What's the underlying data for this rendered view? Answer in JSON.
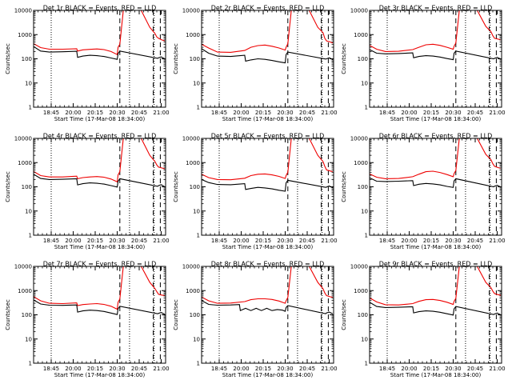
{
  "colors": {
    "events": "#000000",
    "lld": "#ee0000",
    "background": "#ffffff",
    "axis": "#000000"
  },
  "shared": {
    "xlabel": "Start Time (17-Mar-08 18:34:00)",
    "ylabel": "Counts/sec",
    "x_tick_labels": [
      "18:45",
      "20:00",
      "20:15",
      "20:30",
      "20:45",
      "21:00"
    ],
    "y_tick_labels": [
      "1",
      "10",
      "100",
      "1000",
      "10000"
    ]
  },
  "chart_data": [
    {
      "type": "line",
      "title": "Det 1r BLACK = Events, RED = LLD",
      "x_unit": "minutes",
      "xlim": [
        0,
        150
      ],
      "ylim": [
        1,
        10000
      ],
      "y_scale": "log",
      "dotted_lines": [
        20,
        109,
        137
      ],
      "dashed_lines": [
        98,
        136,
        144
      ],
      "series": [
        {
          "x": [
            0,
            8,
            18,
            33,
            49,
            50,
            56,
            64,
            72,
            80,
            88,
            95,
            96,
            98,
            102,
            103,
            107,
            108,
            122,
            132,
            138,
            140,
            142,
            146,
            149
          ],
          "y": [
            420,
            290,
            250,
            250,
            260,
            210,
            235,
            245,
            255,
            240,
            200,
            150,
            300,
            400,
            10500,
            10500,
            12500,
            10500,
            10500,
            2000,
            1100,
            800,
            700,
            600,
            550
          ]
        },
        {
          "x": [
            0,
            8,
            18,
            33,
            49,
            50,
            56,
            64,
            72,
            80,
            88,
            95,
            96,
            98,
            141,
            142,
            145,
            149
          ],
          "y": [
            320,
            210,
            190,
            195,
            205,
            115,
            130,
            140,
            135,
            125,
            108,
            95,
            165,
            210,
            105,
            110,
            120,
            100
          ]
        }
      ]
    },
    {
      "type": "line",
      "title": "Det 2r BLACK = Events, RED = LLD",
      "x_unit": "minutes",
      "xlim": [
        0,
        150
      ],
      "ylim": [
        1,
        10000
      ],
      "y_scale": "log",
      "dotted_lines": [
        20,
        109,
        137
      ],
      "dashed_lines": [
        98,
        136,
        144
      ],
      "series": [
        {
          "x": [
            0,
            8,
            18,
            33,
            49,
            56,
            64,
            72,
            80,
            88,
            95,
            96,
            98,
            102,
            103,
            107,
            108,
            122,
            132,
            138,
            140,
            142,
            146,
            149
          ],
          "y": [
            400,
            280,
            190,
            185,
            220,
            300,
            350,
            370,
            330,
            280,
            230,
            300,
            420,
            10500,
            10500,
            12500,
            10500,
            10500,
            2000,
            1200,
            700,
            550,
            500,
            450
          ]
        },
        {
          "x": [
            0,
            8,
            18,
            33,
            49,
            50,
            56,
            64,
            72,
            80,
            88,
            95,
            96,
            98,
            141,
            142,
            145,
            149
          ],
          "y": [
            260,
            170,
            130,
            125,
            140,
            80,
            90,
            100,
            95,
            85,
            75,
            68,
            150,
            190,
            98,
            100,
            110,
            95
          ]
        }
      ]
    },
    {
      "type": "line",
      "title": "Det 3r BLACK = Events, RED = LLD",
      "x_unit": "minutes",
      "xlim": [
        0,
        150
      ],
      "ylim": [
        1,
        10000
      ],
      "y_scale": "log",
      "dotted_lines": [
        20,
        109,
        137
      ],
      "dashed_lines": [
        98,
        136,
        144
      ],
      "series": [
        {
          "x": [
            0,
            8,
            18,
            33,
            49,
            56,
            64,
            72,
            80,
            88,
            95,
            96,
            98,
            102,
            103,
            107,
            108,
            122,
            132,
            138,
            140,
            142,
            146,
            149
          ],
          "y": [
            360,
            250,
            200,
            205,
            240,
            300,
            380,
            400,
            360,
            300,
            250,
            330,
            450,
            10500,
            10500,
            12500,
            10500,
            10500,
            2200,
            1300,
            900,
            700,
            650,
            600
          ]
        },
        {
          "x": [
            0,
            8,
            18,
            33,
            49,
            50,
            56,
            64,
            72,
            80,
            88,
            95,
            96,
            98,
            141,
            142,
            145,
            149
          ],
          "y": [
            240,
            170,
            160,
            165,
            175,
            110,
            125,
            135,
            130,
            118,
            102,
            92,
            170,
            210,
            100,
            105,
            115,
            98
          ]
        }
      ]
    },
    {
      "type": "line",
      "title": "Det 4r BLACK = Events, RED = LLD",
      "x_unit": "minutes",
      "xlim": [
        0,
        150
      ],
      "ylim": [
        1,
        10000
      ],
      "y_scale": "log",
      "dotted_lines": [
        20,
        109,
        137
      ],
      "dashed_lines": [
        98,
        136,
        144
      ],
      "series": [
        {
          "x": [
            0,
            8,
            18,
            33,
            49,
            50,
            56,
            64,
            72,
            80,
            88,
            95,
            96,
            98,
            102,
            103,
            107,
            108,
            122,
            132,
            138,
            140,
            142,
            146,
            149
          ],
          "y": [
            430,
            290,
            255,
            255,
            275,
            215,
            240,
            255,
            265,
            250,
            210,
            160,
            310,
            420,
            10500,
            10500,
            12500,
            10500,
            10500,
            2000,
            1100,
            800,
            650,
            600,
            550
          ]
        },
        {
          "x": [
            0,
            8,
            18,
            33,
            49,
            50,
            56,
            64,
            72,
            80,
            88,
            95,
            96,
            98,
            141,
            142,
            145,
            149
          ],
          "y": [
            330,
            220,
            200,
            205,
            215,
            120,
            135,
            145,
            140,
            130,
            112,
            98,
            170,
            215,
            105,
            112,
            122,
            100
          ]
        }
      ]
    },
    {
      "type": "line",
      "title": "Det 5r BLACK = Events, RED = LLD",
      "x_unit": "minutes",
      "xlim": [
        0,
        150
      ],
      "ylim": [
        1,
        10000
      ],
      "y_scale": "log",
      "dotted_lines": [
        20,
        109,
        137
      ],
      "dashed_lines": [
        98,
        136,
        144
      ],
      "series": [
        {
          "x": [
            0,
            8,
            18,
            33,
            49,
            56,
            64,
            72,
            80,
            88,
            95,
            96,
            98,
            102,
            103,
            107,
            108,
            122,
            132,
            138,
            140,
            142,
            146,
            149
          ],
          "y": [
            330,
            240,
            200,
            195,
            225,
            290,
            330,
            340,
            310,
            270,
            220,
            290,
            400,
            10500,
            10500,
            12500,
            10500,
            10500,
            2000,
            1100,
            700,
            500,
            450,
            420
          ]
        },
        {
          "x": [
            0,
            8,
            18,
            33,
            49,
            50,
            56,
            64,
            72,
            80,
            88,
            95,
            96,
            98,
            141,
            142,
            145,
            149
          ],
          "y": [
            200,
            150,
            125,
            122,
            135,
            78,
            85,
            95,
            90,
            82,
            72,
            66,
            145,
            185,
            95,
            98,
            108,
            92
          ]
        }
      ]
    },
    {
      "type": "line",
      "title": "Det 6r BLACK = Events, RED = LLD",
      "x_unit": "minutes",
      "xlim": [
        0,
        150
      ],
      "ylim": [
        1,
        10000
      ],
      "y_scale": "log",
      "dotted_lines": [
        20,
        109,
        137
      ],
      "dashed_lines": [
        98,
        136,
        144
      ],
      "series": [
        {
          "x": [
            0,
            8,
            18,
            33,
            49,
            56,
            64,
            72,
            80,
            88,
            95,
            96,
            98,
            102,
            103,
            107,
            108,
            122,
            132,
            138,
            140,
            142,
            146,
            149
          ],
          "y": [
            340,
            250,
            215,
            220,
            260,
            330,
            420,
            440,
            390,
            320,
            260,
            350,
            470,
            10500,
            10500,
            12500,
            10500,
            10500,
            2200,
            1300,
            900,
            700,
            620,
            580
          ]
        },
        {
          "x": [
            0,
            8,
            18,
            33,
            49,
            50,
            56,
            64,
            72,
            80,
            88,
            95,
            96,
            98,
            141,
            142,
            145,
            149
          ],
          "y": [
            235,
            170,
            165,
            170,
            180,
            112,
            128,
            138,
            132,
            120,
            104,
            94,
            175,
            215,
            100,
            106,
            116,
            98
          ]
        }
      ]
    },
    {
      "type": "line",
      "title": "Det 7r BLACK = Events, RED = LLD",
      "x_unit": "minutes",
      "xlim": [
        0,
        150
      ],
      "ylim": [
        1,
        10000
      ],
      "y_scale": "log",
      "dotted_lines": [
        20,
        109,
        137
      ],
      "dashed_lines": [
        98,
        136,
        144
      ],
      "series": [
        {
          "x": [
            0,
            8,
            18,
            33,
            49,
            50,
            56,
            64,
            72,
            80,
            88,
            95,
            96,
            98,
            102,
            103,
            107,
            108,
            122,
            132,
            138,
            140,
            142,
            146,
            149
          ],
          "y": [
            560,
            380,
            300,
            290,
            310,
            240,
            265,
            280,
            290,
            270,
            225,
            170,
            330,
            450,
            10500,
            10500,
            12500,
            10500,
            10500,
            2200,
            1200,
            900,
            700,
            650,
            620
          ]
        },
        {
          "x": [
            0,
            8,
            18,
            33,
            49,
            50,
            56,
            64,
            72,
            80,
            88,
            95,
            96,
            98,
            141,
            142,
            145,
            149
          ],
          "y": [
            410,
            280,
            250,
            245,
            255,
            130,
            145,
            155,
            150,
            138,
            118,
            102,
            180,
            225,
            110,
            115,
            125,
            105
          ]
        }
      ]
    },
    {
      "type": "line",
      "title": "Det 8r BLACK = Events, RED = LLD",
      "x_unit": "minutes",
      "xlim": [
        0,
        150
      ],
      "ylim": [
        1,
        10000
      ],
      "y_scale": "log",
      "dotted_lines": [
        20,
        109,
        137
      ],
      "dashed_lines": [
        98,
        136,
        144
      ],
      "series": [
        {
          "x": [
            0,
            8,
            18,
            33,
            49,
            56,
            64,
            72,
            80,
            88,
            95,
            96,
            98,
            102,
            103,
            107,
            108,
            122,
            132,
            138,
            140,
            142,
            146,
            149
          ],
          "y": [
            540,
            380,
            300,
            305,
            350,
            420,
            460,
            460,
            430,
            370,
            300,
            380,
            520,
            10500,
            10500,
            12500,
            10500,
            10500,
            2200,
            1200,
            800,
            620,
            560,
            520
          ]
        },
        {
          "x": [
            0,
            8,
            18,
            33,
            43,
            44,
            50,
            56,
            62,
            68,
            74,
            80,
            86,
            92,
            95,
            96,
            98,
            141,
            142,
            145,
            149
          ],
          "y": [
            390,
            270,
            250,
            255,
            265,
            150,
            185,
            150,
            185,
            150,
            185,
            150,
            165,
            155,
            140,
            200,
            240,
            110,
            120,
            130,
            110
          ]
        }
      ]
    },
    {
      "type": "line",
      "title": "Det 9r BLACK = Events, RED = LLD",
      "x_unit": "minutes",
      "xlim": [
        0,
        150
      ],
      "ylim": [
        1,
        10000
      ],
      "y_scale": "log",
      "dotted_lines": [
        20,
        109,
        137
      ],
      "dashed_lines": [
        98,
        136,
        144
      ],
      "series": [
        {
          "x": [
            0,
            8,
            18,
            33,
            49,
            56,
            64,
            72,
            80,
            88,
            95,
            96,
            98,
            102,
            103,
            107,
            108,
            122,
            132,
            138,
            140,
            142,
            146,
            149
          ],
          "y": [
            500,
            340,
            260,
            255,
            290,
            360,
            420,
            430,
            390,
            330,
            270,
            360,
            480,
            10500,
            10500,
            12500,
            10500,
            10500,
            2200,
            1300,
            950,
            750,
            680,
            640
          ]
        },
        {
          "x": [
            0,
            8,
            18,
            33,
            49,
            50,
            56,
            64,
            72,
            80,
            88,
            95,
            96,
            98,
            141,
            142,
            145,
            149
          ],
          "y": [
            330,
            220,
            200,
            205,
            215,
            120,
            135,
            145,
            140,
            128,
            110,
            98,
            175,
            220,
            102,
            108,
            118,
            100
          ]
        }
      ]
    }
  ]
}
